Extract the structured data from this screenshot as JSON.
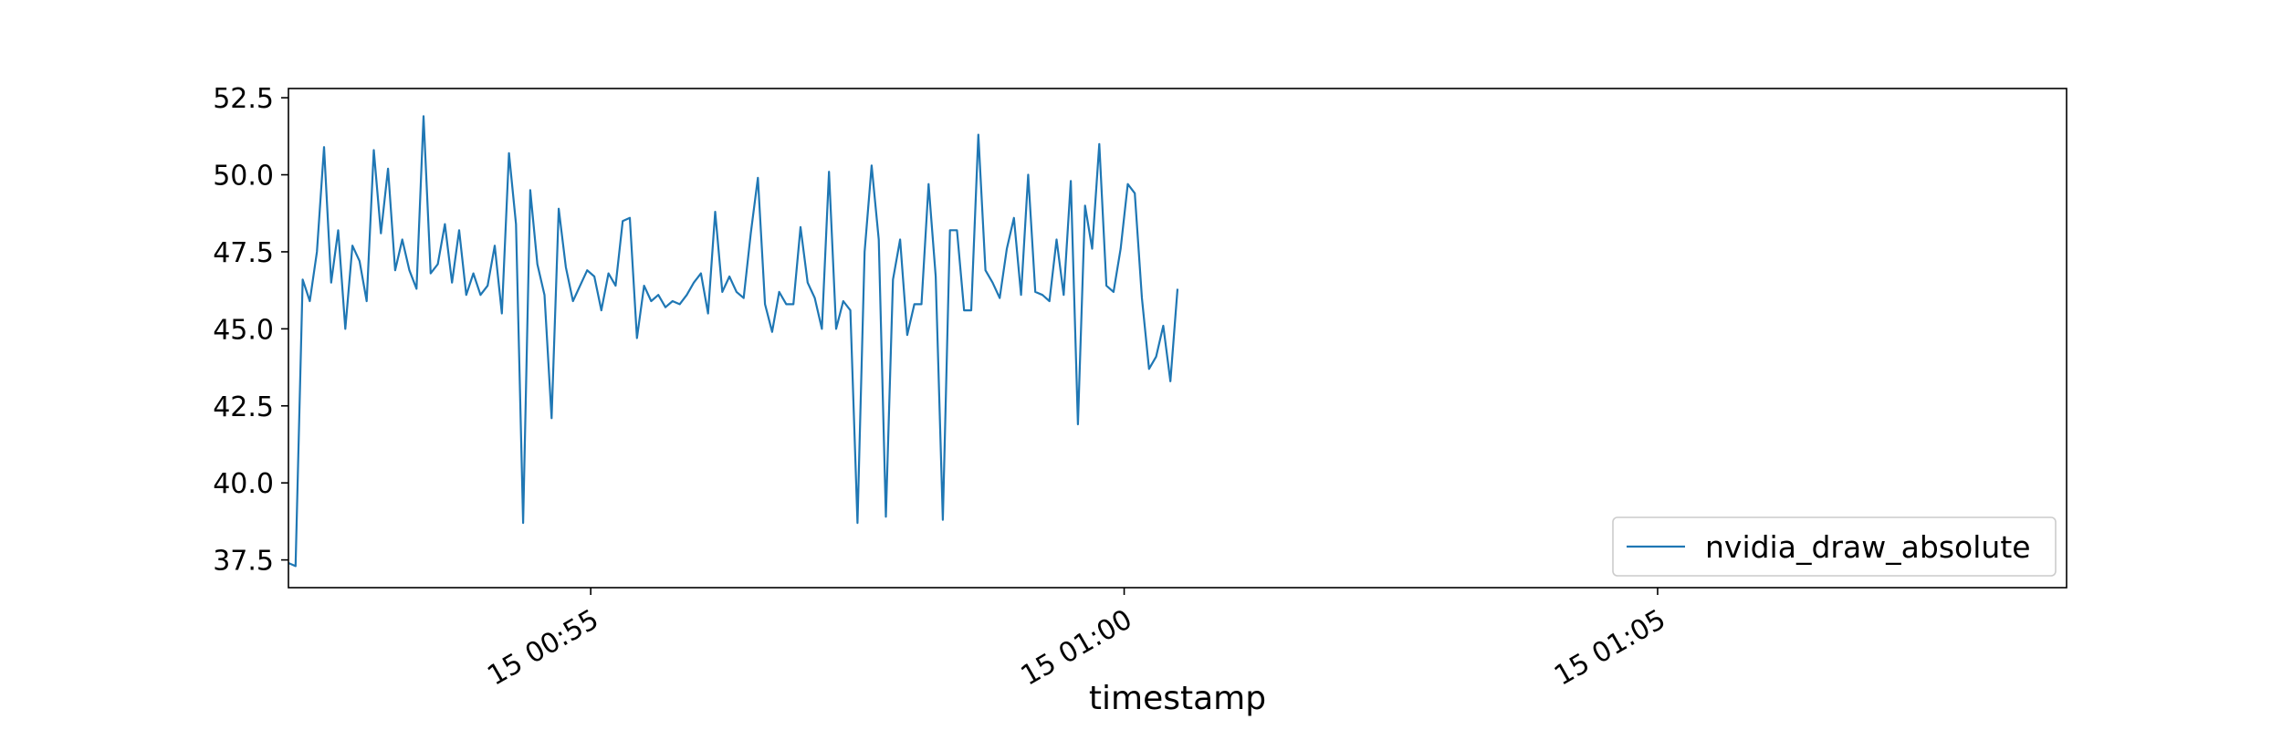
{
  "chart_data": {
    "type": "line",
    "title": "",
    "xlabel": "timestamp",
    "ylabel": "",
    "x_axis_type": "datetime",
    "x_start": "15 00:52:10",
    "x_step_seconds": 4,
    "xlim": [
      "15 00:52:10",
      "15 01:08:50"
    ],
    "ylim": [
      36.6,
      52.8
    ],
    "yticks": [
      37.5,
      40.0,
      42.5,
      45.0,
      47.5,
      50.0,
      52.5
    ],
    "ytick_labels": [
      "37.5",
      "40.0",
      "42.5",
      "45.0",
      "47.5",
      "50.0",
      "52.5"
    ],
    "xticks": [
      "15 00:55:00",
      "15 01:00:00",
      "15 01:05:00"
    ],
    "xtick_labels": [
      "15 00:55",
      "15 01:00",
      "15 01:05"
    ],
    "grid": false,
    "legend_position": "lower-right",
    "color": "#1f77b4",
    "series": [
      {
        "name": "nvidia_draw_absolute",
        "values": [
          37.4,
          37.3,
          46.6,
          45.9,
          47.5,
          50.9,
          46.5,
          48.2,
          45.0,
          47.7,
          47.2,
          45.9,
          50.8,
          48.1,
          50.2,
          46.9,
          47.9,
          46.9,
          46.3,
          51.9,
          46.8,
          47.1,
          48.4,
          46.5,
          48.2,
          46.1,
          46.8,
          46.1,
          46.4,
          47.7,
          45.5,
          50.7,
          48.4,
          38.7,
          49.5,
          47.1,
          46.1,
          42.1,
          48.9,
          47.0,
          45.9,
          46.4,
          46.9,
          46.7,
          45.6,
          46.8,
          46.4,
          48.5,
          48.6,
          44.7,
          46.4,
          45.9,
          46.1,
          45.7,
          45.9,
          45.8,
          46.1,
          46.5,
          46.8,
          45.5,
          48.8,
          46.2,
          46.7,
          46.2,
          46.0,
          48.1,
          49.9,
          45.8,
          44.9,
          46.2,
          45.8,
          45.8,
          48.3,
          46.5,
          46.0,
          45.0,
          50.1,
          45.0,
          45.9,
          45.6,
          38.7,
          47.5,
          50.3,
          47.9,
          38.9,
          46.6,
          47.9,
          44.8,
          45.8,
          45.8,
          49.7,
          46.7,
          38.8,
          48.2,
          48.2,
          45.6,
          45.6,
          51.3,
          46.9,
          46.5,
          46.0,
          47.6,
          48.6,
          46.1,
          50.0,
          46.2,
          46.1,
          45.9,
          47.9,
          46.1,
          49.8,
          41.9,
          49.0,
          47.6,
          51.0,
          46.4,
          46.2,
          47.6,
          49.7,
          49.4,
          46.0,
          43.7,
          44.1,
          45.1,
          43.3,
          46.3
        ]
      }
    ]
  }
}
